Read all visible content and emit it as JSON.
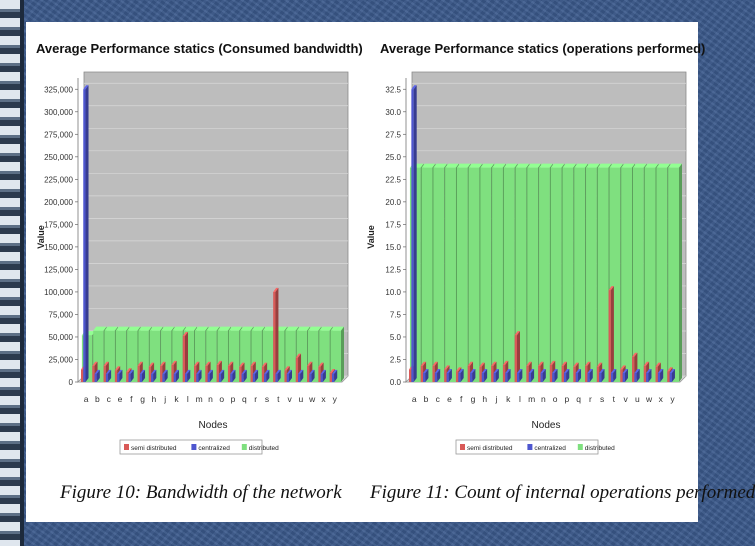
{
  "chart_data": [
    {
      "type": "bar",
      "title": "Average Performance statics (Consumed bandwidth)",
      "xlabel": "Nodes",
      "ylabel": "Value",
      "ylim": [
        0,
        337500
      ],
      "yticks": [
        0,
        25000,
        50000,
        75000,
        100000,
        125000,
        150000,
        175000,
        200000,
        225000,
        250000,
        275000,
        300000,
        325000
      ],
      "ytick_labels": [
        "0",
        "25,000",
        "50,000",
        "75,000",
        "100,000",
        "125,000",
        "150,000",
        "175,000",
        "200,000",
        "225,000",
        "250,000",
        "275,000",
        "300,000",
        "325,000"
      ],
      "categories": [
        "a",
        "b",
        "c",
        "e",
        "f",
        "g",
        "h",
        "j",
        "k",
        "l",
        "m",
        "n",
        "o",
        "p",
        "q",
        "r",
        "s",
        "t",
        "v",
        "u",
        "w",
        "x",
        "y"
      ],
      "legend": [
        "semi distributed",
        "centralized",
        "distributed"
      ],
      "series": [
        {
          "name": "semi distributed",
          "values": [
            14000,
            18000,
            18000,
            13000,
            11000,
            18000,
            17000,
            18000,
            19000,
            51000,
            18000,
            18000,
            19000,
            18000,
            17000,
            18000,
            17000,
            100000,
            13000,
            27000,
            18000,
            17000,
            10000
          ]
        },
        {
          "name": "centralized",
          "values": [
            325000,
            9000,
            9000,
            9000,
            9000,
            9000,
            9000,
            9000,
            9000,
            9000,
            9000,
            9000,
            9000,
            9000,
            9000,
            9000,
            9000,
            9000,
            9000,
            9000,
            9000,
            9000,
            9000
          ]
        },
        {
          "name": "distributed",
          "values": [
            52000,
            57000,
            57000,
            57000,
            57000,
            57000,
            57000,
            57000,
            57000,
            57000,
            57000,
            57000,
            57000,
            57000,
            57000,
            57000,
            57000,
            57000,
            57000,
            57000,
            57000,
            57000,
            57000
          ]
        }
      ],
      "caption": "Figure 10: Bandwidth of the network"
    },
    {
      "type": "bar",
      "title": "Average Performance statics (operations performed)",
      "xlabel": "Nodes",
      "ylabel": "Value",
      "ylim": [
        0,
        33.75
      ],
      "yticks": [
        0,
        2.5,
        5,
        7.5,
        10,
        12.5,
        15,
        17.5,
        20,
        22.5,
        25,
        27.5,
        30,
        32.5
      ],
      "ytick_labels": [
        "0.0",
        "2.5",
        "5.0",
        "7.5",
        "10.0",
        "12.5",
        "15.0",
        "17.5",
        "20.0",
        "22.5",
        "25.0",
        "27.5",
        "30.0",
        "32.5"
      ],
      "categories": [
        "a",
        "b",
        "c",
        "e",
        "f",
        "g",
        "h",
        "j",
        "k",
        "l",
        "m",
        "n",
        "o",
        "p",
        "q",
        "r",
        "s",
        "t",
        "v",
        "u",
        "w",
        "x",
        "y"
      ],
      "legend": [
        "semi distributed",
        "centralized",
        "distributed"
      ],
      "series": [
        {
          "name": "semi distributed",
          "values": [
            1.4,
            1.8,
            1.8,
            1.4,
            1.2,
            1.8,
            1.7,
            1.8,
            1.9,
            5.2,
            1.8,
            1.8,
            1.9,
            1.8,
            1.7,
            1.8,
            1.7,
            10.2,
            1.4,
            2.8,
            1.8,
            1.7,
            1.2
          ]
        },
        {
          "name": "centralized",
          "values": [
            32.5,
            1.0,
            1.0,
            1.0,
            1.0,
            1.0,
            1.0,
            1.0,
            1.0,
            1.0,
            1.0,
            1.0,
            1.0,
            1.0,
            1.0,
            1.0,
            1.0,
            1.0,
            1.0,
            1.0,
            1.0,
            1.0,
            1.0
          ]
        },
        {
          "name": "distributed",
          "values": [
            23.8,
            23.8,
            23.8,
            23.8,
            23.8,
            23.8,
            23.8,
            23.8,
            23.8,
            23.8,
            23.8,
            23.8,
            23.8,
            23.8,
            23.8,
            23.8,
            23.8,
            23.8,
            23.8,
            23.8,
            23.8,
            23.8,
            23.8
          ]
        }
      ],
      "caption": "Figure 11: Count of internal operations performed"
    }
  ],
  "colors": {
    "semi distributed": "#d95a58",
    "centralized": "#4e56cf",
    "distributed": "#7fe07f",
    "plot_bg": "#bdbdbd",
    "floor": "#d6d6d6"
  }
}
